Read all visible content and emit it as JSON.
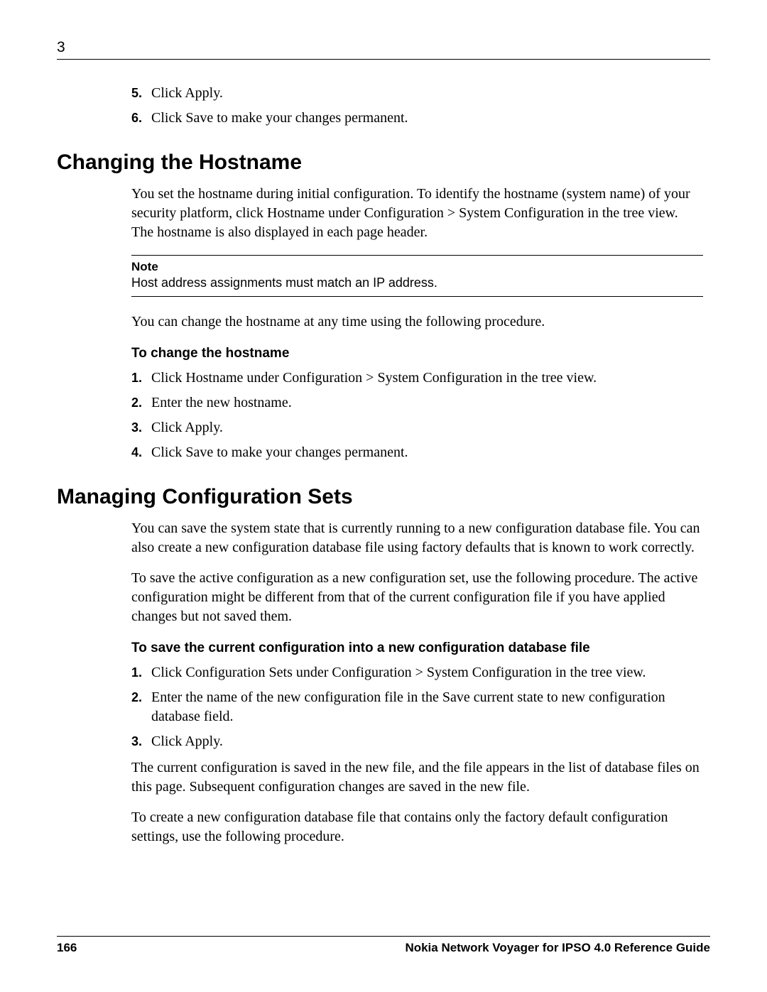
{
  "chapter_number": "3",
  "intro_steps": [
    {
      "n": "5.",
      "t": "Click Apply."
    },
    {
      "n": "6.",
      "t": "Click Save to make your changes permanent."
    }
  ],
  "section1": {
    "heading": "Changing the Hostname",
    "para1": "You set the hostname during initial configuration. To identify the hostname (system name) of your security platform, click Hostname under Configuration > System Configuration in the tree view. The hostname is also displayed in each page header.",
    "note_title": "Note",
    "note_text": "Host address assignments must match an IP address.",
    "para2": "You can change the hostname at any time using the following procedure.",
    "subhead": "To change the hostname",
    "steps": [
      {
        "n": "1.",
        "t": "Click Hostname under Configuration > System Configuration in the tree view."
      },
      {
        "n": "2.",
        "t": "Enter the new hostname."
      },
      {
        "n": "3.",
        "t": "Click Apply."
      },
      {
        "n": "4.",
        "t": "Click Save to make your changes permanent."
      }
    ]
  },
  "section2": {
    "heading": "Managing Configuration Sets",
    "para1": "You can save the system state that is currently running to a new configuration database file. You can also create a new configuration database file using factory defaults that is known to work correctly.",
    "para2": "To save the active configuration as a new configuration set, use the following procedure. The active configuration might be different from that of the current configuration file if you have applied changes but not saved them.",
    "subhead": "To save the current configuration into a new configuration database file",
    "steps": [
      {
        "n": "1.",
        "t": "Click Configuration Sets under Configuration > System Configuration in the tree view."
      },
      {
        "n": "2.",
        "t": "Enter the name of the new configuration file in the Save current state to new configuration database field."
      },
      {
        "n": "3.",
        "t": "Click Apply."
      }
    ],
    "para3": "The current configuration is saved in the new file, and the file appears in the list of database files on this page. Subsequent configuration changes are saved in the new file.",
    "para4": "To create a new configuration database file that contains only the factory default configuration settings, use the following procedure."
  },
  "footer": {
    "page": "166",
    "title": "Nokia Network Voyager for IPSO 4.0 Reference Guide"
  }
}
